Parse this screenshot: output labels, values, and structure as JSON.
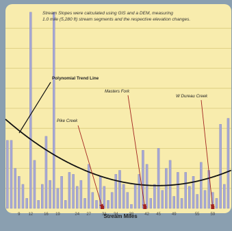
{
  "colors": {
    "plot_background": "#f8ecad",
    "bar_fill": "#a7a8d4",
    "bar_stroke": "#8487b8",
    "trend_line": "#111111",
    "gridline": "#d8c97a",
    "arrow": "#a3241f"
  },
  "chart_data": {
    "type": "bar",
    "title": "Stream Slopes were calculated using GIS and a DEM, measuring 1.0 mile (5,280 ft) stream segments and the respective elevation changes.",
    "xlabel": "Stream Miles",
    "ylabel": "",
    "grid": true,
    "ylim": [
      0,
      100
    ],
    "x": [
      6,
      7,
      8,
      9,
      10,
      11,
      12,
      13,
      14,
      15,
      16,
      17,
      18,
      19,
      20,
      21,
      22,
      23,
      24,
      25,
      26,
      27,
      28,
      29,
      30,
      31,
      32,
      33,
      34,
      35,
      36,
      37,
      38,
      39,
      40,
      41,
      42,
      43,
      44,
      45,
      46,
      47,
      48,
      49,
      50,
      51,
      52,
      53,
      54,
      55,
      56,
      57,
      58,
      59,
      60,
      61,
      62,
      63
    ],
    "values": [
      34,
      34,
      20,
      16,
      12,
      5,
      98,
      24,
      4,
      12,
      36,
      14,
      98,
      10,
      16,
      4,
      18,
      17,
      11,
      14,
      5,
      22,
      8,
      4,
      16,
      11,
      4,
      8,
      17,
      19,
      12,
      8,
      2,
      12,
      17,
      29,
      22,
      5,
      12,
      30,
      9,
      20,
      24,
      6,
      18,
      5,
      18,
      11,
      16,
      7,
      23,
      9,
      19,
      8,
      5,
      42,
      12,
      45
    ],
    "xticks": [
      "9",
      "12",
      "16",
      "19",
      "24",
      "27",
      "31",
      "34",
      "38",
      "42",
      "45",
      "49",
      "55",
      "59"
    ],
    "trend_line": {
      "name": "Polynomial Trend Line",
      "coefficients": [
        0.0214,
        -1.92,
        54.45
      ]
    },
    "annotations": [
      {
        "text": "Polynomial Trend Line",
        "x": 7
      },
      {
        "text": "Pike Creek",
        "x": 30.5
      },
      {
        "text": "Masters Fork",
        "x": 41.5
      },
      {
        "text": "W Dureau Creek",
        "x": 59
      }
    ]
  }
}
